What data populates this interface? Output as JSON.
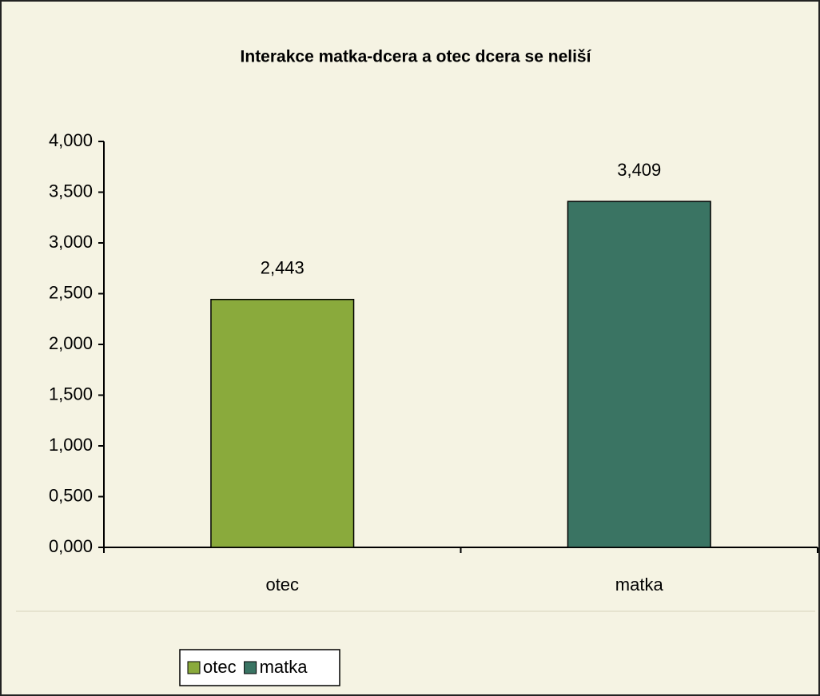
{
  "chart_data": {
    "type": "bar",
    "title": "Interakce matka-dcera a otec dcera se neliší",
    "categories": [
      "otec",
      "matka"
    ],
    "series": [
      {
        "name": "otec",
        "color": "#8aaa3c",
        "values": [
          2.443,
          null
        ],
        "value_labels": [
          "2,443",
          null
        ]
      },
      {
        "name": "matka",
        "color": "#3a7463",
        "values": [
          null,
          3.409
        ],
        "value_labels": [
          null,
          "3,409"
        ]
      }
    ],
    "ylim": [
      0,
      4
    ],
    "yticks": [
      {
        "value": 0,
        "label": "0,000"
      },
      {
        "value": 0.5,
        "label": "0,500"
      },
      {
        "value": 1,
        "label": "1,000"
      },
      {
        "value": 1.5,
        "label": "1,500"
      },
      {
        "value": 2,
        "label": "2,000"
      },
      {
        "value": 2.5,
        "label": "2,500"
      },
      {
        "value": 3,
        "label": "3,000"
      },
      {
        "value": 3.5,
        "label": "3,500"
      },
      {
        "value": 4,
        "label": "4,000"
      }
    ],
    "grid": false,
    "legend": "bottom-left"
  }
}
